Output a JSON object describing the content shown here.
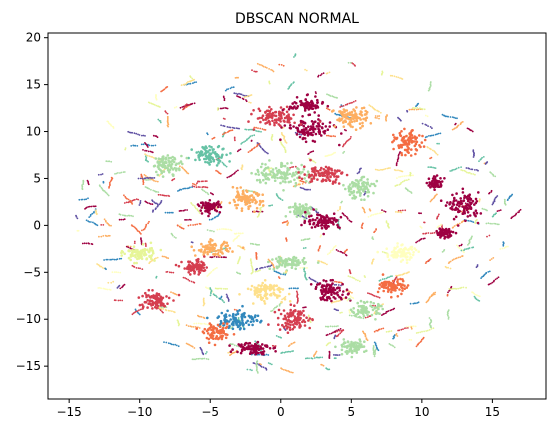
{
  "chart_data": {
    "type": "scatter",
    "title": "DBSCAN NORMAL",
    "xlabel": "",
    "ylabel": "",
    "xlim": [
      -16.5,
      18.8
    ],
    "ylim": [
      -18.5,
      20.5
    ],
    "x_ticks": [
      -15,
      -10,
      -5,
      0,
      5,
      10,
      15
    ],
    "y_ticks": [
      -15,
      -10,
      -5,
      0,
      5,
      10,
      15,
      20
    ],
    "grid": false,
    "legend": "none",
    "palette": [
      "#9e0142",
      "#d53e4f",
      "#f46d43",
      "#fdae61",
      "#fee08b",
      "#ffffbf",
      "#e6f598",
      "#abdda4",
      "#66c2a5",
      "#3288bd",
      "#5e4fa2"
    ],
    "clusters_approx": [
      {
        "x": 2.0,
        "y": 10.2,
        "sx": 1.4,
        "sy": 0.9,
        "color": "#9e0142"
      },
      {
        "x": -0.3,
        "y": 11.5,
        "sx": 1.2,
        "sy": 0.8,
        "color": "#d53e4f"
      },
      {
        "x": 1.8,
        "y": 12.8,
        "sx": 1.0,
        "sy": 0.7,
        "color": "#9e0142"
      },
      {
        "x": 5.0,
        "y": 11.5,
        "sx": 1.0,
        "sy": 0.9,
        "color": "#fdae61"
      },
      {
        "x": 9.0,
        "y": 8.8,
        "sx": 0.8,
        "sy": 1.0,
        "color": "#f46d43"
      },
      {
        "x": -5.0,
        "y": 7.5,
        "sx": 1.0,
        "sy": 0.8,
        "color": "#66c2a5"
      },
      {
        "x": -8.0,
        "y": 6.5,
        "sx": 0.9,
        "sy": 0.8,
        "color": "#abdda4"
      },
      {
        "x": 0.0,
        "y": 5.5,
        "sx": 1.6,
        "sy": 1.0,
        "color": "#abdda4"
      },
      {
        "x": 3.0,
        "y": 5.5,
        "sx": 1.2,
        "sy": 0.8,
        "color": "#d53e4f"
      },
      {
        "x": 5.5,
        "y": 4.0,
        "sx": 0.9,
        "sy": 0.9,
        "color": "#abdda4"
      },
      {
        "x": -2.5,
        "y": 2.7,
        "sx": 1.0,
        "sy": 0.8,
        "color": "#fdae61"
      },
      {
        "x": -5.0,
        "y": 2.0,
        "sx": 0.6,
        "sy": 0.5,
        "color": "#9e0142"
      },
      {
        "x": 1.5,
        "y": 1.6,
        "sx": 0.8,
        "sy": 0.6,
        "color": "#abdda4"
      },
      {
        "x": 3.0,
        "y": 0.5,
        "sx": 1.0,
        "sy": 0.7,
        "color": "#9e0142"
      },
      {
        "x": 11.0,
        "y": 4.5,
        "sx": 0.4,
        "sy": 0.5,
        "color": "#9e0142"
      },
      {
        "x": 13.0,
        "y": 2.0,
        "sx": 0.9,
        "sy": 1.2,
        "color": "#9e0142"
      },
      {
        "x": 11.6,
        "y": -0.8,
        "sx": 0.5,
        "sy": 0.4,
        "color": "#9e0142"
      },
      {
        "x": -4.8,
        "y": -2.5,
        "sx": 1.0,
        "sy": 0.6,
        "color": "#fdae61"
      },
      {
        "x": -6.0,
        "y": -4.5,
        "sx": 0.8,
        "sy": 0.6,
        "color": "#d53e4f"
      },
      {
        "x": 0.5,
        "y": -4.0,
        "sx": 1.0,
        "sy": 0.6,
        "color": "#abdda4"
      },
      {
        "x": 3.5,
        "y": -7.0,
        "sx": 1.0,
        "sy": 0.8,
        "color": "#9e0142"
      },
      {
        "x": -3.0,
        "y": -10.0,
        "sx": 1.2,
        "sy": 0.9,
        "color": "#3288bd"
      },
      {
        "x": -4.5,
        "y": -11.5,
        "sx": 0.8,
        "sy": 0.7,
        "color": "#f46d43"
      },
      {
        "x": 1.0,
        "y": -10.0,
        "sx": 1.0,
        "sy": 1.0,
        "color": "#d53e4f"
      },
      {
        "x": 5.0,
        "y": -13.0,
        "sx": 0.8,
        "sy": 0.6,
        "color": "#abdda4"
      },
      {
        "x": -2.0,
        "y": -13.0,
        "sx": 1.0,
        "sy": 0.6,
        "color": "#9e0142"
      },
      {
        "x": -9.0,
        "y": -8.0,
        "sx": 0.9,
        "sy": 0.8,
        "color": "#d53e4f"
      },
      {
        "x": 8.0,
        "y": -6.5,
        "sx": 0.8,
        "sy": 0.7,
        "color": "#f46d43"
      },
      {
        "x": 6.0,
        "y": -9.0,
        "sx": 0.8,
        "sy": 0.6,
        "color": "#abdda4"
      },
      {
        "x": -10.0,
        "y": -3.0,
        "sx": 0.9,
        "sy": 0.7,
        "color": "#e6f598"
      },
      {
        "x": 8.5,
        "y": -3.0,
        "sx": 0.9,
        "sy": 0.7,
        "color": "#ffffbf"
      },
      {
        "x": -1.0,
        "y": -7.0,
        "sx": 1.2,
        "sy": 0.8,
        "color": "#fee08b"
      }
    ]
  }
}
